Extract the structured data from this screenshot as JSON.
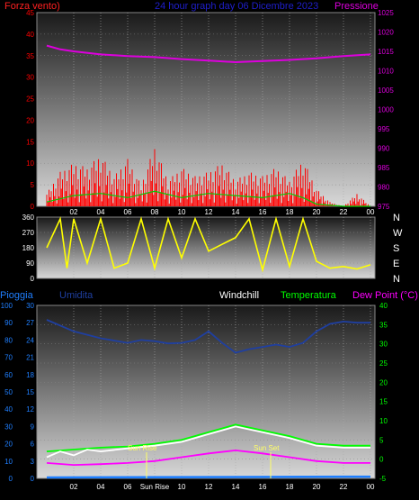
{
  "header": {
    "left_label": "Forza vento)",
    "title": "24 hour graph day  06 Dicembre 2023",
    "right_label": "Pressione"
  },
  "colors": {
    "wind": "#ff0000",
    "gust": "#00cc00",
    "pressure": "#dd00dd",
    "direction": "#ffff00",
    "rain": "#1f7fff",
    "humidity": "#1f3fa0",
    "windchill": "#ffffff",
    "temperature": "#00ff00",
    "dewpoint": "#ff00ff",
    "title": "#1f1fcc"
  },
  "x_ticks": [
    "02",
    "04",
    "06",
    "08",
    "10",
    "12",
    "14",
    "16",
    "18",
    "20",
    "22",
    "00"
  ],
  "x_ticks_bottom": [
    "02",
    "04",
    "06",
    "Sun Rise",
    "10",
    "12",
    "14",
    "16",
    "18",
    "20",
    "22",
    "00"
  ],
  "panel1": {
    "left_ticks": [
      "45",
      "40",
      "35",
      "30",
      "25",
      "20",
      "15",
      "10",
      "5",
      "0"
    ],
    "right_ticks": [
      "1025",
      "1020",
      "1015",
      "1010",
      "1005",
      "1000",
      "995",
      "990",
      "985",
      "980",
      "975"
    ]
  },
  "panel2": {
    "left_ticks": [
      "360",
      "270",
      "180",
      "90",
      "0"
    ],
    "compass": [
      "N",
      "W",
      "S",
      "E",
      "N"
    ]
  },
  "panel3": {
    "legend": {
      "rain": "Pioggia",
      "humidity": "Umidita",
      "windchill": "Windchill",
      "temperature": "Temperatura",
      "dewpoint": "Dew Point (°C)"
    },
    "rain_ticks": [
      "100",
      "90",
      "80",
      "70",
      "60",
      "50",
      "40",
      "30",
      "20",
      "10",
      "0"
    ],
    "hum_ticks": [
      "30",
      "27",
      "24",
      "21",
      "18",
      "15",
      "12",
      "9",
      "6",
      "3",
      "0"
    ],
    "temp_ticks": [
      "40",
      "35",
      "30",
      "25",
      "20",
      "15",
      "10",
      "5",
      "0",
      "-5"
    ],
    "sunrise": "Sun Rise",
    "sunset": "Sun Set"
  },
  "chart_data": [
    {
      "type": "line",
      "panel": "wind-pressure",
      "x_hours": [
        0,
        24
      ],
      "y_left_range": [
        0,
        45
      ],
      "y_right_range": [
        975,
        1025
      ],
      "series": [
        {
          "key": "pressure",
          "axis": "right",
          "points": [
            [
              0,
              1016.5
            ],
            [
              1,
              1015.5
            ],
            [
              2,
              1015
            ],
            [
              4,
              1014.2
            ],
            [
              6,
              1013.8
            ],
            [
              8,
              1013.5
            ],
            [
              10,
              1013
            ],
            [
              12,
              1012.6
            ],
            [
              14,
              1012.2
            ],
            [
              16,
              1012.5
            ],
            [
              18,
              1012.8
            ],
            [
              20,
              1013.2
            ],
            [
              22,
              1013.8
            ],
            [
              24,
              1014.2
            ]
          ]
        },
        {
          "key": "wind",
          "axis": "left",
          "points": [
            [
              0,
              3
            ],
            [
              1,
              8
            ],
            [
              2,
              10
            ],
            [
              3,
              9
            ],
            [
              4,
              12
            ],
            [
              5,
              7
            ],
            [
              6,
              11
            ],
            [
              7,
              5
            ],
            [
              8,
              14
            ],
            [
              9,
              6
            ],
            [
              10,
              9
            ],
            [
              11,
              7
            ],
            [
              12,
              8
            ],
            [
              13,
              10
            ],
            [
              14,
              6
            ],
            [
              15,
              8
            ],
            [
              16,
              7
            ],
            [
              17,
              9
            ],
            [
              18,
              6
            ],
            [
              19,
              11
            ],
            [
              20,
              4
            ],
            [
              21,
              1
            ],
            [
              22,
              0
            ],
            [
              23,
              3
            ],
            [
              24,
              0
            ]
          ]
        },
        {
          "key": "gust",
          "axis": "left",
          "points": [
            [
              0,
              1
            ],
            [
              2,
              2.5
            ],
            [
              4,
              3
            ],
            [
              6,
              2
            ],
            [
              8,
              3.5
            ],
            [
              10,
              2
            ],
            [
              12,
              3
            ],
            [
              14,
              2.5
            ],
            [
              16,
              2
            ],
            [
              18,
              3
            ],
            [
              19,
              2
            ],
            [
              20,
              0.5
            ],
            [
              22,
              0
            ],
            [
              24,
              0
            ]
          ]
        }
      ]
    },
    {
      "type": "line",
      "panel": "wind-direction",
      "x_hours": [
        0,
        24
      ],
      "y_range": [
        0,
        360
      ],
      "series": [
        {
          "key": "direction",
          "points": [
            [
              0,
              180
            ],
            [
              1,
              350
            ],
            [
              1.5,
              60
            ],
            [
              2,
              350
            ],
            [
              3,
              90
            ],
            [
              4,
              350
            ],
            [
              5,
              60
            ],
            [
              6,
              90
            ],
            [
              7,
              350
            ],
            [
              8,
              60
            ],
            [
              9,
              350
            ],
            [
              10,
              120
            ],
            [
              11,
              350
            ],
            [
              12,
              160
            ],
            [
              13,
              200
            ],
            [
              14,
              240
            ],
            [
              15,
              350
            ],
            [
              16,
              50
            ],
            [
              17,
              350
            ],
            [
              18,
              70
            ],
            [
              19,
              350
            ],
            [
              20,
              100
            ],
            [
              21,
              60
            ],
            [
              22,
              70
            ],
            [
              23,
              55
            ],
            [
              24,
              80
            ]
          ]
        }
      ]
    },
    {
      "type": "line",
      "panel": "temperature-humidity",
      "x_hours": [
        0,
        24
      ],
      "y_temp_range": [
        -5,
        40
      ],
      "y_hum_range": [
        0,
        30
      ],
      "y_rain_range": [
        0,
        100
      ],
      "series": [
        {
          "key": "humidity",
          "axis": "hum",
          "points": [
            [
              0,
              27.5
            ],
            [
              2,
              25.5
            ],
            [
              4,
              24.3
            ],
            [
              6,
              23.5
            ],
            [
              7,
              24
            ],
            [
              8,
              23.8
            ],
            [
              9,
              23.4
            ],
            [
              10,
              23.5
            ],
            [
              11,
              24
            ],
            [
              12,
              25.5
            ],
            [
              13,
              23.5
            ],
            [
              14,
              21.8
            ],
            [
              15,
              22.4
            ],
            [
              16,
              22.8
            ],
            [
              17,
              23.2
            ],
            [
              18,
              22.8
            ],
            [
              19,
              23.5
            ],
            [
              20,
              25.5
            ],
            [
              21,
              26.8
            ],
            [
              22,
              27.2
            ],
            [
              23,
              27
            ],
            [
              24,
              27
            ]
          ]
        },
        {
          "key": "temperature",
          "axis": "temp",
          "points": [
            [
              0,
              2
            ],
            [
              2,
              2.5
            ],
            [
              4,
              3
            ],
            [
              6,
              3.3
            ],
            [
              8,
              4
            ],
            [
              10,
              5
            ],
            [
              12,
              7
            ],
            [
              14,
              9
            ],
            [
              16,
              7.5
            ],
            [
              18,
              6
            ],
            [
              20,
              4
            ],
            [
              22,
              3.5
            ],
            [
              24,
              3.5
            ]
          ]
        },
        {
          "key": "windchill",
          "axis": "temp",
          "points": [
            [
              0,
              0.5
            ],
            [
              1,
              2
            ],
            [
              2,
              1
            ],
            [
              3,
              2.5
            ],
            [
              4,
              2
            ],
            [
              6,
              2.8
            ],
            [
              8,
              3.5
            ],
            [
              10,
              4.5
            ],
            [
              12,
              6.5
            ],
            [
              14,
              8.5
            ],
            [
              16,
              7
            ],
            [
              18,
              5.5
            ],
            [
              20,
              3.5
            ],
            [
              22,
              3
            ],
            [
              24,
              3
            ]
          ]
        },
        {
          "key": "dewpoint",
          "axis": "temp",
          "points": [
            [
              0,
              -1
            ],
            [
              2,
              -1.5
            ],
            [
              4,
              -1.3
            ],
            [
              6,
              -1
            ],
            [
              8,
              -0.5
            ],
            [
              10,
              0.5
            ],
            [
              12,
              1.5
            ],
            [
              14,
              2.3
            ],
            [
              16,
              1.5
            ],
            [
              18,
              0.5
            ],
            [
              20,
              -0.5
            ],
            [
              22,
              -1
            ],
            [
              24,
              -1
            ]
          ]
        },
        {
          "key": "rain",
          "axis": "rain",
          "points": [
            [
              0,
              0.5
            ],
            [
              24,
              1
            ]
          ]
        }
      ]
    }
  ]
}
